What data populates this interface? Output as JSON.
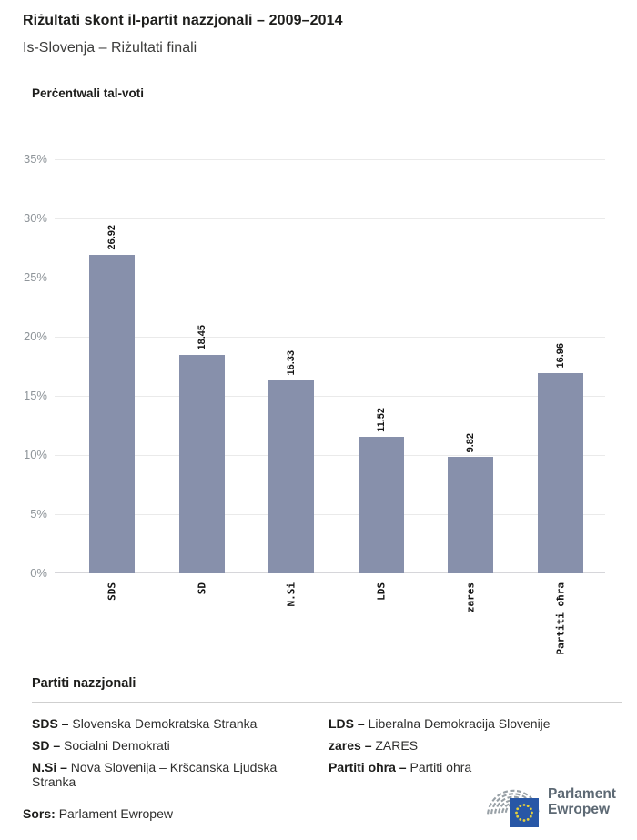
{
  "header": {
    "title": "Riżultati skont il-partit nazzjonali – 2009–2014",
    "subtitle": "Is-Slovenja – Riżultati finali"
  },
  "chart_data": {
    "type": "bar",
    "title": "Perċentwali tal-voti",
    "categories": [
      "SDS",
      "SD",
      "N.Si",
      "LDS",
      "zares",
      "Partiti oħra"
    ],
    "values": [
      26.92,
      18.45,
      16.33,
      11.52,
      9.82,
      16.96
    ],
    "value_labels": [
      "26.92",
      "18.45",
      "16.33",
      "11.52",
      "9.82",
      "16.96"
    ],
    "ylabel": "Perċentwali tal-voti",
    "xlabel": "",
    "ylim": [
      0,
      35
    ],
    "ytick_step": 5,
    "ytick_suffix": "%",
    "grid": true,
    "legend_position": "none",
    "bar_color": "#8790ab"
  },
  "legend": {
    "heading": "Partiti nazzjonali",
    "columns": [
      {
        "items": [
          {
            "term": "SDS –",
            "definition": "Slovenska Demokratska Stranka"
          },
          {
            "term": "SD –",
            "definition": "Socialni Demokrati"
          },
          {
            "term": "N.Si –",
            "definition": "Nova Slovenija – Kršcanska Ljudska Stranka"
          }
        ]
      },
      {
        "items": [
          {
            "term": "LDS –",
            "definition": "Liberalna Demokracija Slovenije"
          },
          {
            "term": "zares –",
            "definition": "ZARES"
          },
          {
            "term": "Partiti oħra –",
            "definition": "Partiti oħra"
          }
        ]
      }
    ]
  },
  "footer": {
    "source_label": "Sors:",
    "source_value": "Parlament Ewropew",
    "logo_line1": "Parlament",
    "logo_line2": "Ewropew"
  },
  "colors": {
    "bar": "#8790ab",
    "gridline": "#eaeaea",
    "axis_baseline": "#d6d6da",
    "tick_label": "#8f959a",
    "eu_flag_blue": "#2857a6",
    "eu_star_yellow": "#e7d13c",
    "logo_gray": "#5d6974"
  }
}
